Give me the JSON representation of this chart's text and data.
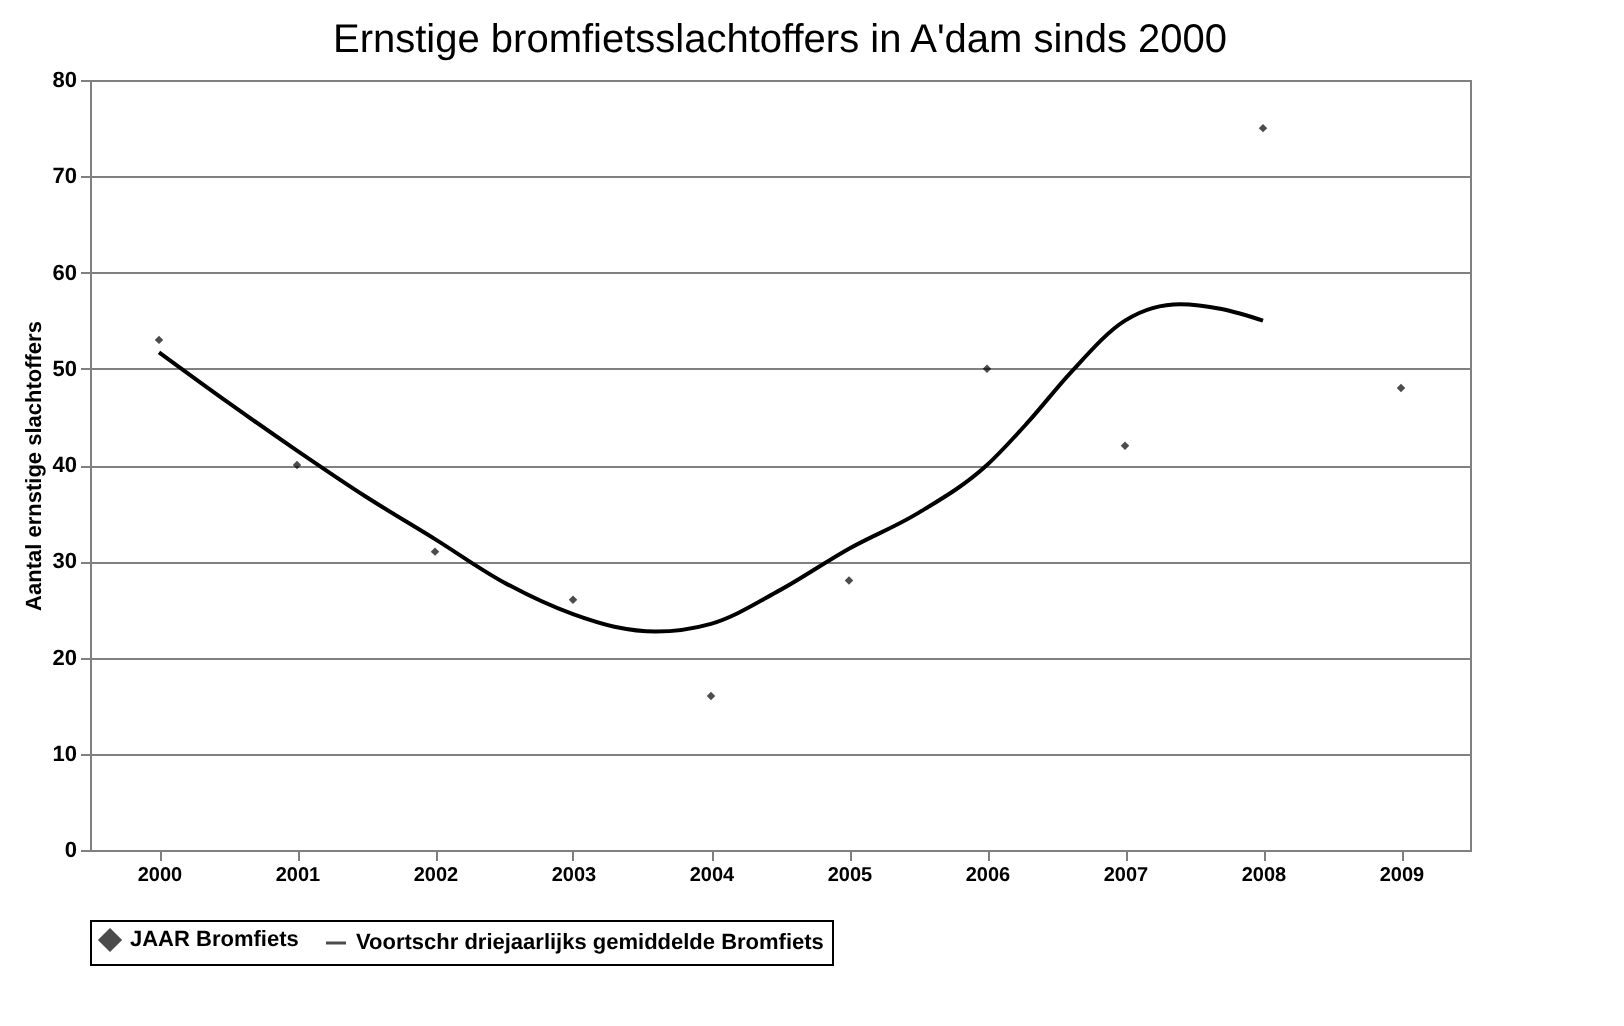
{
  "chart_data": {
    "type": "scatter",
    "title": "Ernstige bromfietsslachtoffers in A'dam sinds 2000",
    "ylabel": "Aantal ernstige slachtoffers",
    "x": [
      2000,
      2001,
      2002,
      2003,
      2004,
      2005,
      2006,
      2007,
      2008,
      2009
    ],
    "series": [
      {
        "name": "JAAR Bromfiets",
        "color": "#000000",
        "marker": "diamond",
        "values": [
          53,
          40,
          31,
          26,
          16,
          28,
          50,
          42,
          75,
          48
        ]
      },
      {
        "name": "Voortschr driejaarlijks gemiddelde Bromfiets",
        "type": "line",
        "color": "#000000",
        "marker": "none",
        "line_style": "solid",
        "x": [
          2000,
          2000.5,
          2001,
          2001.5,
          2002,
          2002.5,
          2003,
          2003.3,
          2003.6,
          2004,
          2004.5,
          2005,
          2005.5,
          2006,
          2006.3,
          2006.6,
          2007,
          2007.2,
          2007.4,
          2007.7,
          2008
        ],
        "values": [
          51.7,
          46.5,
          41.5,
          36.7,
          32.3,
          27.8,
          24.5,
          23.2,
          22.7,
          23.5,
          27,
          31.3,
          35,
          40,
          44.5,
          49.5,
          55,
          56.3,
          56.7,
          56.2,
          55
        ]
      }
    ],
    "xlim": [
      1999.5,
      2009.5
    ],
    "xticks": [
      2000,
      2001,
      2002,
      2003,
      2004,
      2005,
      2006,
      2007,
      2008,
      2009
    ],
    "ylim": [
      0,
      80
    ],
    "yticks": [
      0,
      10,
      20,
      30,
      40,
      50,
      60,
      70,
      80
    ],
    "grid": "y",
    "legend": "bottom"
  }
}
